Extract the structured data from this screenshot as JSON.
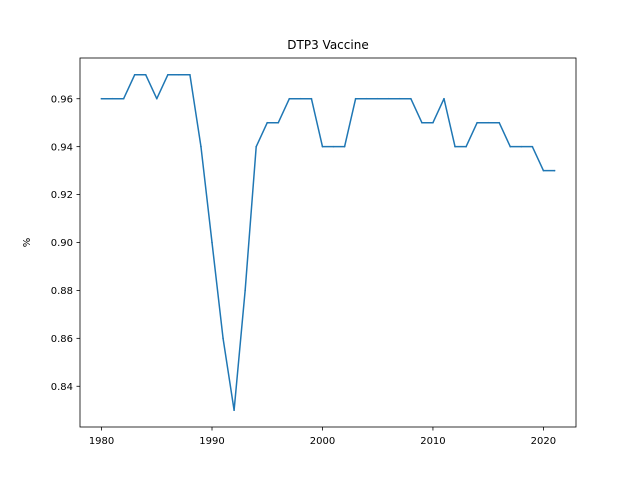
{
  "chart_data": {
    "type": "line",
    "title": "DTP3 Vaccine",
    "xlabel": "",
    "ylabel": "%",
    "xlim": [
      1978.05,
      2022.95
    ],
    "ylim": [
      0.823,
      0.977
    ],
    "x_ticks": [
      1980,
      1990,
      2000,
      2010,
      2020
    ],
    "y_ticks": [
      0.84,
      0.86,
      0.88,
      0.9,
      0.92,
      0.94,
      0.96
    ],
    "grid": false,
    "series": [
      {
        "color": "#1f77b4",
        "x": [
          1980,
          1981,
          1982,
          1983,
          1984,
          1985,
          1986,
          1987,
          1988,
          1989,
          1990,
          1991,
          1992,
          1993,
          1994,
          1995,
          1996,
          1997,
          1998,
          1999,
          2000,
          2001,
          2002,
          2003,
          2004,
          2005,
          2006,
          2007,
          2008,
          2009,
          2010,
          2011,
          2012,
          2013,
          2014,
          2015,
          2016,
          2017,
          2018,
          2019,
          2020,
          2021
        ],
        "y": [
          0.96,
          0.96,
          0.96,
          0.97,
          0.97,
          0.96,
          0.97,
          0.97,
          0.97,
          0.94,
          0.9,
          0.86,
          0.83,
          0.88,
          0.94,
          0.95,
          0.95,
          0.96,
          0.96,
          0.96,
          0.94,
          0.94,
          0.94,
          0.96,
          0.96,
          0.96,
          0.96,
          0.96,
          0.96,
          0.95,
          0.95,
          0.96,
          0.94,
          0.94,
          0.95,
          0.95,
          0.95,
          0.94,
          0.94,
          0.94,
          0.93,
          0.93
        ]
      }
    ]
  }
}
